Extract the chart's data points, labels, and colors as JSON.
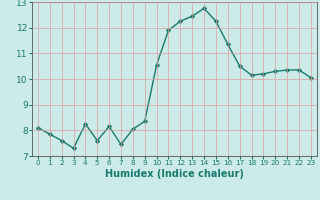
{
  "x": [
    0,
    1,
    2,
    3,
    4,
    5,
    6,
    7,
    8,
    9,
    10,
    11,
    12,
    13,
    14,
    15,
    16,
    17,
    18,
    19,
    20,
    21,
    22,
    23
  ],
  "y": [
    8.1,
    7.85,
    7.6,
    7.3,
    8.25,
    7.6,
    8.15,
    7.45,
    8.05,
    8.35,
    10.55,
    11.9,
    12.25,
    12.45,
    12.75,
    12.25,
    11.35,
    10.5,
    10.15,
    10.2,
    10.3,
    10.35,
    10.35,
    10.05
  ],
  "line_color": "#1a7a6e",
  "marker": "D",
  "marker_size": 2.2,
  "line_width": 1.0,
  "bg_color": "#cceae7",
  "grid_color": "#d9a0a0",
  "xlabel": "Humidex (Indice chaleur)",
  "xlim": [
    -0.5,
    23.5
  ],
  "ylim": [
    7,
    13
  ],
  "yticks": [
    7,
    8,
    9,
    10,
    11,
    12,
    13
  ],
  "xticks": [
    0,
    1,
    2,
    3,
    4,
    5,
    6,
    7,
    8,
    9,
    10,
    11,
    12,
    13,
    14,
    15,
    16,
    17,
    18,
    19,
    20,
    21,
    22,
    23
  ],
  "xlabel_fontsize": 7,
  "tick_fontsize": 6.5,
  "xtick_fontsize": 5.2
}
